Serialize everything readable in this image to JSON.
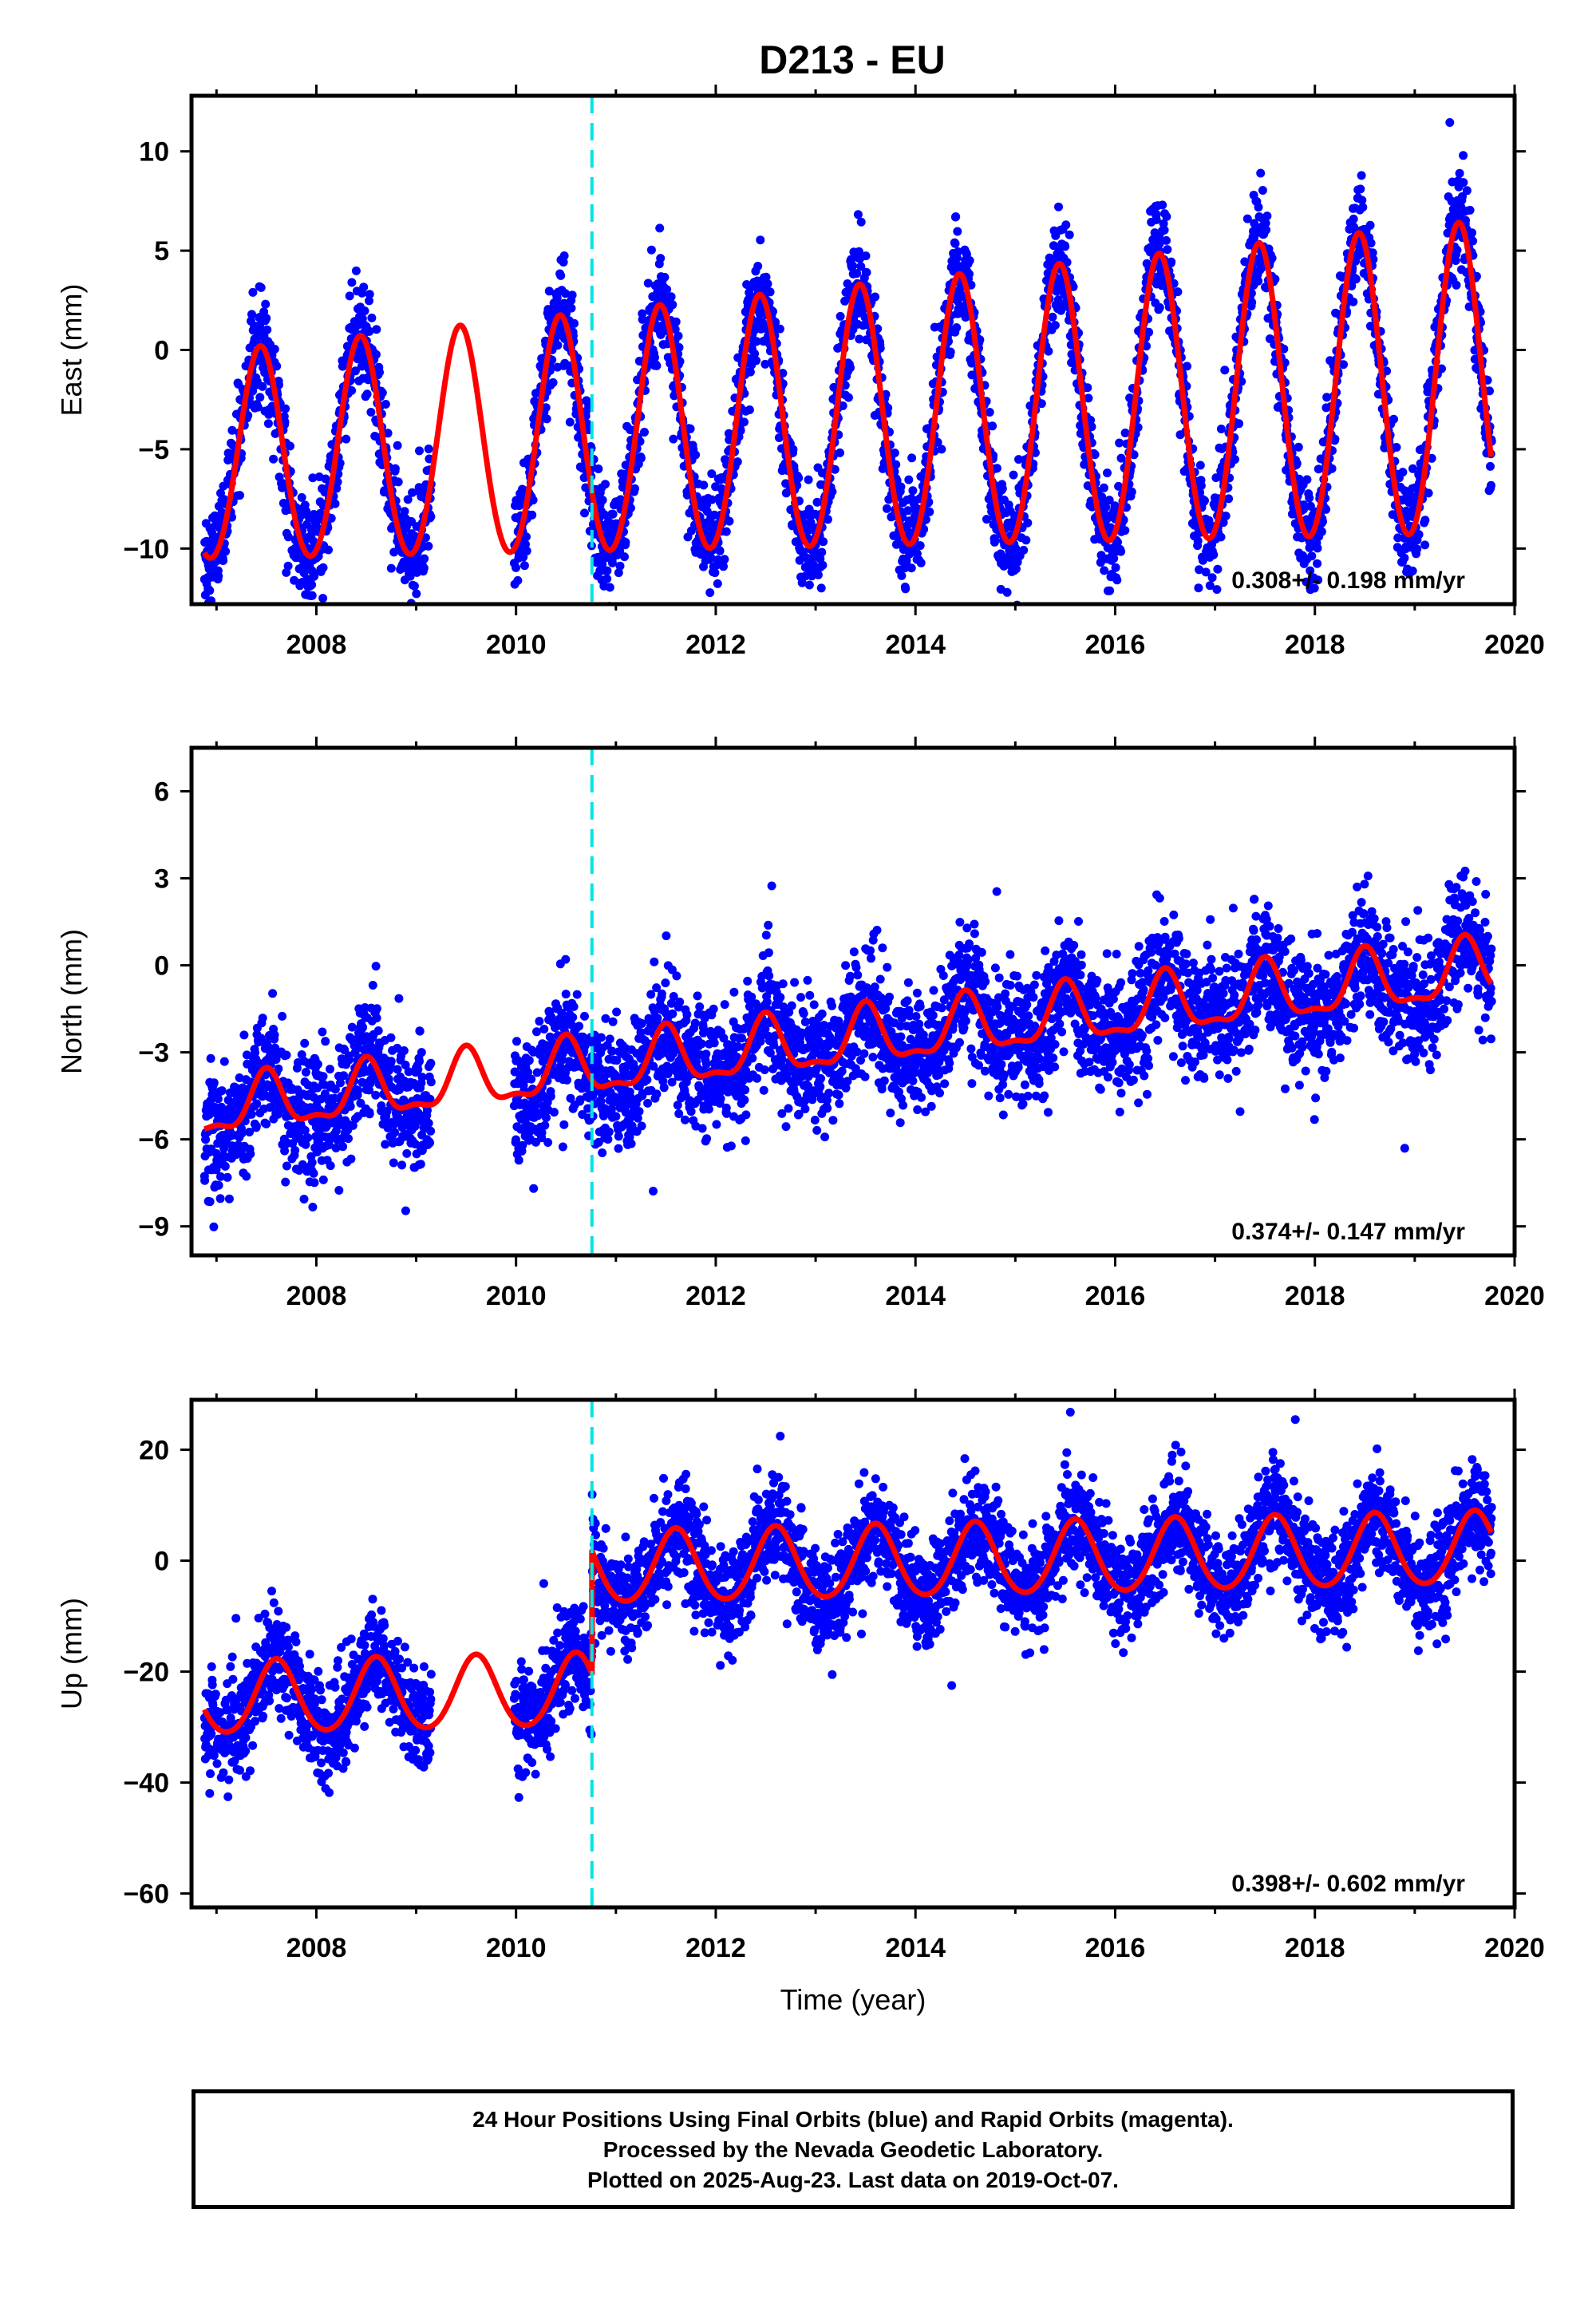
{
  "title": "D213 - EU",
  "colors": {
    "final_orbits": "#0000ff",
    "model": "#ff0000",
    "event_marker": "#00e5e5",
    "frame": "#000000"
  },
  "chart_data": [
    {
      "type": "scatter",
      "ylabel": "East (mm)",
      "xlabel": "",
      "xlim": [
        2006.75,
        2020.0
      ],
      "ylim": [
        -12.8,
        12.8
      ],
      "xticks": [
        2008,
        2010,
        2012,
        2014,
        2016,
        2018,
        2020
      ],
      "yticks": [
        -10,
        -5,
        0,
        5,
        10
      ],
      "ytick_labels": [
        "−10",
        "−5",
        "0",
        "5",
        "10"
      ],
      "rate_label": "0.308+/- 0.198 mm/yr",
      "event_x": 2010.76,
      "data_range": [
        2006.88,
        2019.77
      ],
      "gaps": [
        [
          2009.15,
          2009.98
        ]
      ],
      "model": {
        "intercept": -3.6,
        "trend": 0.308,
        "annual_amp": [
          5.2,
          7.9
        ],
        "annual_peak": 0.44,
        "semiannual_amp": 0.3,
        "step": 0
      },
      "scatter_sd": 1.3,
      "series": [
        {
          "name": "Final Orbits",
          "marker": "dot"
        },
        {
          "name": "Model fit",
          "marker": "line"
        }
      ]
    },
    {
      "type": "scatter",
      "ylabel": "North (mm)",
      "xlabel": "",
      "xlim": [
        2006.75,
        2020.0
      ],
      "ylim": [
        -10.0,
        7.5
      ],
      "xticks": [
        2008,
        2010,
        2012,
        2014,
        2016,
        2018,
        2020
      ],
      "yticks": [
        -9,
        -6,
        -3,
        0,
        3,
        6
      ],
      "ytick_labels": [
        "−9",
        "−6",
        "−3",
        "0",
        "3",
        "6"
      ],
      "rate_label": "0.374+/- 0.147 mm/yr",
      "event_x": 2010.76,
      "data_range": [
        2006.88,
        2019.77
      ],
      "gaps": [
        [
          2009.15,
          2009.98
        ]
      ],
      "model": {
        "intercept": -2.6,
        "trend": 0.374,
        "annual_amp": [
          0.9,
          1.0
        ],
        "annual_peak": 0.5,
        "semiannual_amp": 0.35,
        "step": 0
      },
      "scatter_sd": 1.05,
      "series": [
        {
          "name": "Final Orbits",
          "marker": "dot"
        },
        {
          "name": "Model fit",
          "marker": "line"
        }
      ]
    },
    {
      "type": "scatter",
      "ylabel": "Up (mm)",
      "xlabel": "Time (year)",
      "xlim": [
        2006.75,
        2020.0
      ],
      "ylim": [
        -62.5,
        29.0
      ],
      "xticks": [
        2008,
        2010,
        2012,
        2014,
        2016,
        2018,
        2020
      ],
      "yticks": [
        -60,
        -40,
        -20,
        0,
        20
      ],
      "ytick_labels": [
        "−60",
        "−40",
        "−20",
        "0",
        "20"
      ],
      "rate_label": "0.398+/- 0.602 mm/yr",
      "event_x": 2010.76,
      "data_range": [
        2006.88,
        2019.77
      ],
      "gaps": [
        [
          2009.15,
          2009.98
        ]
      ],
      "model": {
        "intercept": -22.5,
        "trend": 0.398,
        "annual_amp": [
          6.5,
          6.5
        ],
        "annual_peak": 0.6,
        "semiannual_amp": 0.6,
        "step": 22.0
      },
      "scatter_sd": 4.6,
      "series": [
        {
          "name": "Final Orbits",
          "marker": "dot"
        },
        {
          "name": "Model fit",
          "marker": "line"
        }
      ]
    }
  ],
  "footer": {
    "line1": "24 Hour Positions Using Final Orbits (blue) and Rapid Orbits (magenta).",
    "line2": "Processed by the Nevada Geodetic Laboratory.",
    "line3": "Plotted on 2025-Aug-23. Last data on 2019-Oct-07."
  }
}
